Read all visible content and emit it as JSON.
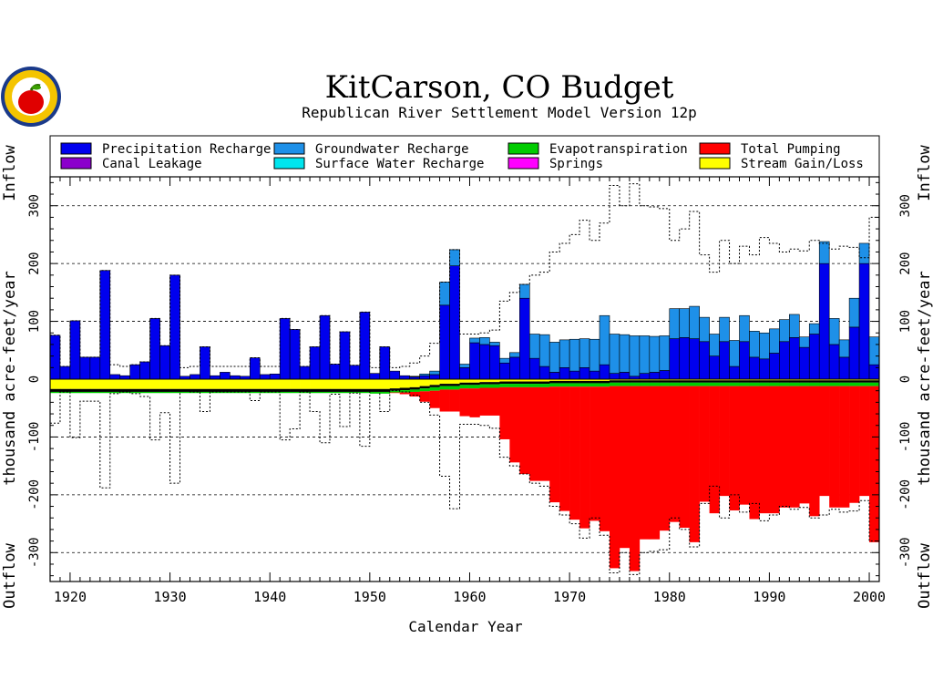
{
  "chart_data": {
    "type": "bar",
    "title": "KitCarson, CO Budget",
    "subtitle": "Republican River Settlement Model Version 12p",
    "xlabel": "Calendar Year",
    "ylabel": "thousand acre-feet/year",
    "ylabel_top": "Inflow",
    "ylabel_bottom": "Outflow",
    "xlim": [
      1918,
      2001
    ],
    "ylim": [
      -350,
      350
    ],
    "xticks": [
      1920,
      1930,
      1940,
      1950,
      1960,
      1970,
      1980,
      1990,
      2000
    ],
    "xtick_labels": [
      "1920",
      "1930",
      "1940",
      "1950",
      "1960",
      "1970",
      "1980",
      "1990",
      "2000"
    ],
    "yticks": [
      -300,
      -200,
      -100,
      0,
      100,
      200,
      300
    ],
    "ytick_labels": [
      "-300",
      "-200",
      "-100",
      "0",
      "100",
      "200",
      "300"
    ],
    "grid": "dashed horizontal at major ticks",
    "legend_placement": "top",
    "legend": [
      {
        "name": "Precipitation Recharge",
        "color": "#0000ee"
      },
      {
        "name": "Groundwater Recharge",
        "color": "#1e90e8"
      },
      {
        "name": "Evapotranspiration",
        "color": "#00cc00"
      },
      {
        "name": "Total Pumping",
        "color": "#ff0000"
      },
      {
        "name": "Canal Leakage",
        "color": "#8b00cc"
      },
      {
        "name": "Surface Water Recharge",
        "color": "#00e5ee"
      },
      {
        "name": "Springs",
        "color": "#ff00ff"
      },
      {
        "name": "Stream Gain/Loss",
        "color": "#ffff00"
      }
    ],
    "years": [
      1918,
      1919,
      1920,
      1921,
      1922,
      1923,
      1924,
      1925,
      1926,
      1927,
      1928,
      1929,
      1930,
      1931,
      1932,
      1933,
      1934,
      1935,
      1936,
      1937,
      1938,
      1939,
      1940,
      1941,
      1942,
      1943,
      1944,
      1945,
      1946,
      1947,
      1948,
      1949,
      1950,
      1951,
      1952,
      1953,
      1954,
      1955,
      1956,
      1957,
      1958,
      1959,
      1960,
      1961,
      1962,
      1963,
      1964,
      1965,
      1966,
      1967,
      1968,
      1969,
      1970,
      1971,
      1972,
      1973,
      1974,
      1975,
      1976,
      1977,
      1978,
      1979,
      1980,
      1981,
      1982,
      1983,
      1984,
      1985,
      1986,
      1987,
      1988,
      1989,
      1990,
      1991,
      1992,
      1993,
      1994,
      1995,
      1996,
      1997,
      1998,
      1999,
      2000
    ],
    "series": [
      {
        "name": "Precipitation Recharge",
        "color": "#0000ee",
        "values": [
          76,
          22,
          101,
          38,
          38,
          188,
          8,
          6,
          25,
          30,
          105,
          58,
          180,
          5,
          8,
          56,
          6,
          12,
          6,
          5,
          37,
          8,
          9,
          105,
          86,
          22,
          56,
          110,
          26,
          82,
          24,
          116,
          10,
          56,
          14,
          6,
          4,
          6,
          8,
          128,
          196,
          20,
          63,
          60,
          58,
          28,
          38,
          140,
          36,
          22,
          12,
          20,
          14,
          20,
          14,
          25,
          10,
          12,
          5,
          10,
          12,
          15,
          70,
          72,
          70,
          65,
          40,
          65,
          22,
          65,
          38,
          35,
          45,
          65,
          72,
          55,
          78,
          200,
          60,
          38,
          90,
          200,
          25
        ]
      },
      {
        "name": "Groundwater Recharge",
        "color": "#1e90e8",
        "values": [
          0,
          0,
          0,
          0,
          0,
          0,
          0,
          0,
          0,
          0,
          0,
          0,
          0,
          0,
          0,
          0,
          0,
          0,
          0,
          0,
          0,
          0,
          0,
          0,
          0,
          0,
          0,
          0,
          0,
          0,
          0,
          0,
          0,
          0,
          0,
          0,
          1,
          3,
          6,
          40,
          28,
          6,
          8,
          12,
          6,
          8,
          8,
          24,
          42,
          55,
          52,
          48,
          55,
          50,
          55,
          85,
          68,
          65,
          70,
          65,
          62,
          60,
          52,
          50,
          56,
          42,
          38,
          42,
          45,
          45,
          45,
          45,
          42,
          38,
          40,
          18,
          18,
          38,
          45,
          30,
          50,
          35,
          48
        ]
      },
      {
        "name": "Evapotranspiration",
        "color": "#00cc00",
        "values": [
          -2,
          -2,
          -2,
          -2,
          -2,
          -2,
          -2,
          -2,
          -2,
          -2,
          -2,
          -2,
          -2,
          -2,
          -2,
          -2,
          -2,
          -2,
          -2,
          -2,
          -2,
          -2,
          -2,
          -2,
          -2,
          -2,
          -2,
          -2,
          -2,
          -2,
          -2,
          -2,
          -3,
          -3,
          -3,
          -4,
          -4,
          -5,
          -6,
          -6,
          -6,
          -6,
          -6,
          -6,
          -6,
          -6,
          -6,
          -6,
          -6,
          -6,
          -6,
          -6,
          -6,
          -6,
          -6,
          -6,
          -6,
          -6,
          -6,
          -6,
          -6,
          -6,
          -6,
          -6,
          -6,
          -6,
          -6,
          -6,
          -6,
          -6,
          -6,
          -6,
          -6,
          -6,
          -6,
          -6,
          -6,
          -6,
          -6,
          -6,
          -6,
          -6,
          -6
        ]
      },
      {
        "name": "Total Pumping",
        "color": "#ff0000",
        "values": [
          0,
          0,
          0,
          0,
          0,
          0,
          0,
          0,
          0,
          0,
          0,
          0,
          0,
          0,
          0,
          0,
          0,
          0,
          0,
          0,
          0,
          0,
          0,
          0,
          0,
          0,
          0,
          0,
          0,
          0,
          0,
          0,
          0,
          0,
          1,
          3,
          8,
          18,
          30,
          38,
          38,
          48,
          50,
          48,
          48,
          90,
          130,
          150,
          162,
          162,
          200,
          215,
          230,
          245,
          232,
          250,
          315,
          280,
          320,
          265,
          265,
          250,
          235,
          245,
          270,
          200,
          220,
          190,
          215,
          205,
          230,
          220,
          220,
          210,
          210,
          203,
          225,
          190,
          210,
          210,
          202,
          190,
          270
        ]
      },
      {
        "name": "Stream Gain/Loss",
        "color": "#ffff00",
        "values": [
          -17,
          -17,
          -17,
          -17,
          -17,
          -17,
          -17,
          -17,
          -17,
          -17,
          -17,
          -17,
          -17,
          -17,
          -17,
          -17,
          -17,
          -17,
          -17,
          -17,
          -17,
          -17,
          -17,
          -17,
          -17,
          -17,
          -17,
          -17,
          -17,
          -17,
          -17,
          -17,
          -17,
          -17,
          -16,
          -15,
          -14,
          -12,
          -10,
          -8,
          -8,
          -6,
          -6,
          -5,
          -5,
          -4,
          -4,
          -4,
          -4,
          -4,
          -3,
          -3,
          -3,
          -3,
          -3,
          -3,
          -2,
          -2,
          -2,
          -2,
          -2,
          -2,
          -2,
          -2,
          -2,
          -2,
          -2,
          -2,
          -2,
          -2,
          -2,
          -2,
          -2,
          -2,
          -2,
          -2,
          -2,
          -2,
          -2,
          -2,
          -2,
          -2,
          -2
        ]
      },
      {
        "name": "Black band",
        "color": "#000000",
        "values": [
          -5,
          -5,
          -5,
          -5,
          -5,
          -5,
          -5,
          -5,
          -5,
          -5,
          -5,
          -5,
          -5,
          -5,
          -5,
          -5,
          -5,
          -5,
          -5,
          -5,
          -5,
          -5,
          -5,
          -5,
          -5,
          -5,
          -5,
          -5,
          -5,
          -5,
          -5,
          -5,
          -5,
          -5,
          -4,
          -4,
          -4,
          -4,
          -4,
          -4,
          -4,
          -4,
          -4,
          -4,
          -4,
          -4,
          -4,
          -4,
          -4,
          -4,
          -4,
          -4,
          -4,
          -4,
          -4,
          -4,
          -4,
          -4,
          -4,
          -4,
          -4,
          -4,
          -4,
          -4,
          -4,
          -4,
          -4,
          -4,
          -4,
          -4,
          -4,
          -4,
          -4,
          -4,
          -4,
          -4,
          -4,
          -4,
          -4,
          -4,
          -4,
          -4,
          -4
        ]
      }
    ],
    "total_inflow_outline": [
      76,
      22,
      101,
      38,
      38,
      188,
      25,
      22,
      25,
      30,
      105,
      58,
      180,
      20,
      22,
      56,
      22,
      22,
      22,
      22,
      37,
      22,
      22,
      105,
      86,
      22,
      56,
      110,
      26,
      82,
      24,
      116,
      20,
      56,
      20,
      22,
      28,
      40,
      62,
      168,
      224,
      78,
      78,
      80,
      85,
      135,
      150,
      164,
      180,
      185,
      220,
      235,
      250,
      275,
      240,
      270,
      335,
      300,
      338,
      300,
      298,
      295,
      240,
      260,
      290,
      215,
      185,
      240,
      200,
      230,
      215,
      245,
      235,
      220,
      225,
      222,
      240,
      235,
      225,
      230,
      228,
      210,
      280
    ]
  }
}
